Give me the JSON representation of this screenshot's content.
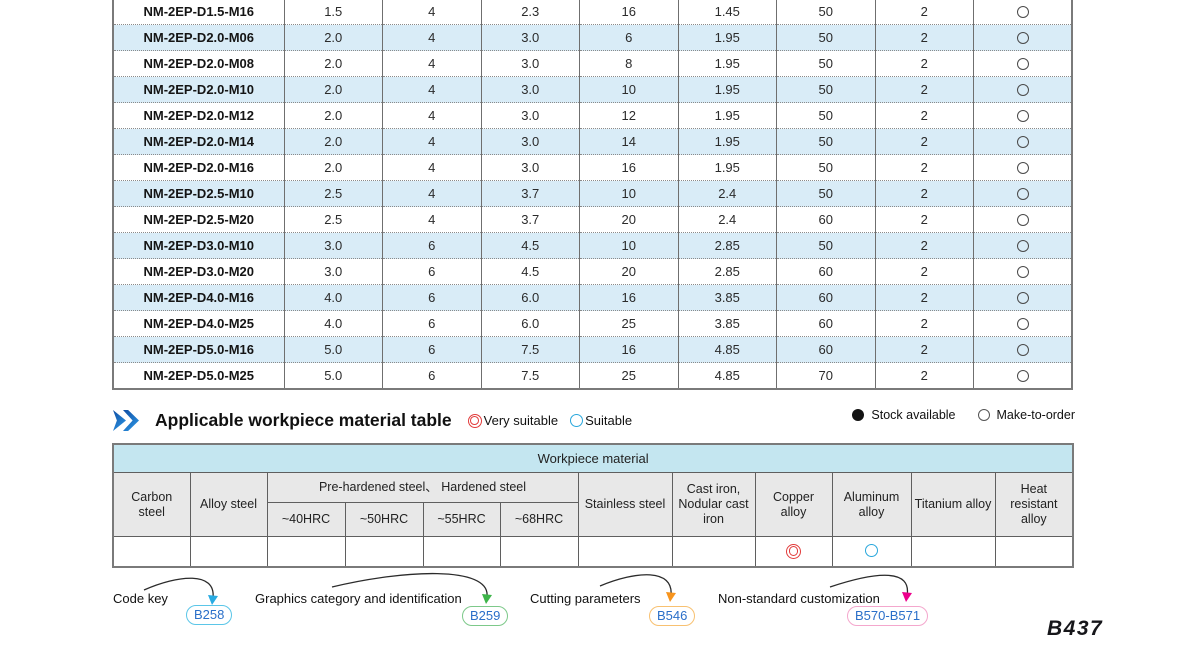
{
  "spec_table": {
    "rows": [
      {
        "model": "NM-2EP-D1.5-M16",
        "values": [
          "1.5",
          "4",
          "2.3",
          "16",
          "1.45",
          "50",
          "2"
        ],
        "stock": "make-to-order"
      },
      {
        "model": "NM-2EP-D2.0-M06",
        "values": [
          "2.0",
          "4",
          "3.0",
          "6",
          "1.95",
          "50",
          "2"
        ],
        "stock": "make-to-order"
      },
      {
        "model": "NM-2EP-D2.0-M08",
        "values": [
          "2.0",
          "4",
          "3.0",
          "8",
          "1.95",
          "50",
          "2"
        ],
        "stock": "make-to-order"
      },
      {
        "model": "NM-2EP-D2.0-M10",
        "values": [
          "2.0",
          "4",
          "3.0",
          "10",
          "1.95",
          "50",
          "2"
        ],
        "stock": "make-to-order"
      },
      {
        "model": "NM-2EP-D2.0-M12",
        "values": [
          "2.0",
          "4",
          "3.0",
          "12",
          "1.95",
          "50",
          "2"
        ],
        "stock": "make-to-order"
      },
      {
        "model": "NM-2EP-D2.0-M14",
        "values": [
          "2.0",
          "4",
          "3.0",
          "14",
          "1.95",
          "50",
          "2"
        ],
        "stock": "make-to-order"
      },
      {
        "model": "NM-2EP-D2.0-M16",
        "values": [
          "2.0",
          "4",
          "3.0",
          "16",
          "1.95",
          "50",
          "2"
        ],
        "stock": "make-to-order"
      },
      {
        "model": "NM-2EP-D2.5-M10",
        "values": [
          "2.5",
          "4",
          "3.7",
          "10",
          "2.4",
          "50",
          "2"
        ],
        "stock": "make-to-order"
      },
      {
        "model": "NM-2EP-D2.5-M20",
        "values": [
          "2.5",
          "4",
          "3.7",
          "20",
          "2.4",
          "60",
          "2"
        ],
        "stock": "make-to-order"
      },
      {
        "model": "NM-2EP-D3.0-M10",
        "values": [
          "3.0",
          "6",
          "4.5",
          "10",
          "2.85",
          "50",
          "2"
        ],
        "stock": "make-to-order"
      },
      {
        "model": "NM-2EP-D3.0-M20",
        "values": [
          "3.0",
          "6",
          "4.5",
          "20",
          "2.85",
          "60",
          "2"
        ],
        "stock": "make-to-order"
      },
      {
        "model": "NM-2EP-D4.0-M16",
        "values": [
          "4.0",
          "6",
          "6.0",
          "16",
          "3.85",
          "60",
          "2"
        ],
        "stock": "make-to-order"
      },
      {
        "model": "NM-2EP-D4.0-M25",
        "values": [
          "4.0",
          "6",
          "6.0",
          "25",
          "3.85",
          "60",
          "2"
        ],
        "stock": "make-to-order"
      },
      {
        "model": "NM-2EP-D5.0-M16",
        "values": [
          "5.0",
          "6",
          "7.5",
          "16",
          "4.85",
          "60",
          "2"
        ],
        "stock": "make-to-order"
      },
      {
        "model": "NM-2EP-D5.0-M25",
        "values": [
          "5.0",
          "6",
          "7.5",
          "25",
          "4.85",
          "70",
          "2"
        ],
        "stock": "make-to-order"
      }
    ]
  },
  "section": {
    "title": "Applicable workpiece material table",
    "legend_very_suitable": "Very suitable",
    "legend_suitable": "Suitable",
    "legend_stock_available": "Stock available",
    "legend_make_to_order": "Make-to-order"
  },
  "workpiece_table": {
    "title": "Workpiece material",
    "columns": [
      {
        "label": "Carbon steel"
      },
      {
        "label": "Alloy steel"
      },
      {
        "label": "Pre-hardened steel、 Hardened steel",
        "children": [
          "~40HRC",
          "~50HRC",
          "~55HRC",
          "~68HRC"
        ]
      },
      {
        "label": "Stainless steel"
      },
      {
        "label": "Cast iron, Nodular cast iron"
      },
      {
        "label": "Copper alloy"
      },
      {
        "label": "Aluminum alloy"
      },
      {
        "label": "Titanium alloy"
      },
      {
        "label": "Heat resistant alloy"
      }
    ],
    "ratings": [
      "",
      "",
      "",
      "",
      "",
      "",
      "",
      "",
      "very-suitable",
      "suitable",
      "",
      ""
    ]
  },
  "footer": {
    "links": [
      {
        "label": "Code key",
        "badge": "B258",
        "color": "#5bc6e8",
        "arrow_color": "#29abe2"
      },
      {
        "label": "Graphics category and identification",
        "badge": "B259",
        "color": "#7dc98a",
        "arrow_color": "#3eb54a"
      },
      {
        "label": "Cutting parameters",
        "badge": "B546",
        "color": "#f8c171",
        "arrow_color": "#f7941d"
      },
      {
        "label": "Non-standard customization",
        "badge": "B570-B571",
        "color": "#f4a7cd",
        "arrow_color": "#ec008c"
      }
    ],
    "page_number": "B437"
  },
  "colors": {
    "stripe_blue": "#d9ecf7",
    "table_border": "#7a7a7a",
    "header_cyan": "#c4e6f0",
    "header_gray": "#e8e8e8",
    "very_suitable_red": "#e23b3b",
    "suitable_blue": "#29a7dc",
    "chevron_blue_dark": "#0e4da4",
    "chevron_blue_light": "#2f9be8"
  }
}
